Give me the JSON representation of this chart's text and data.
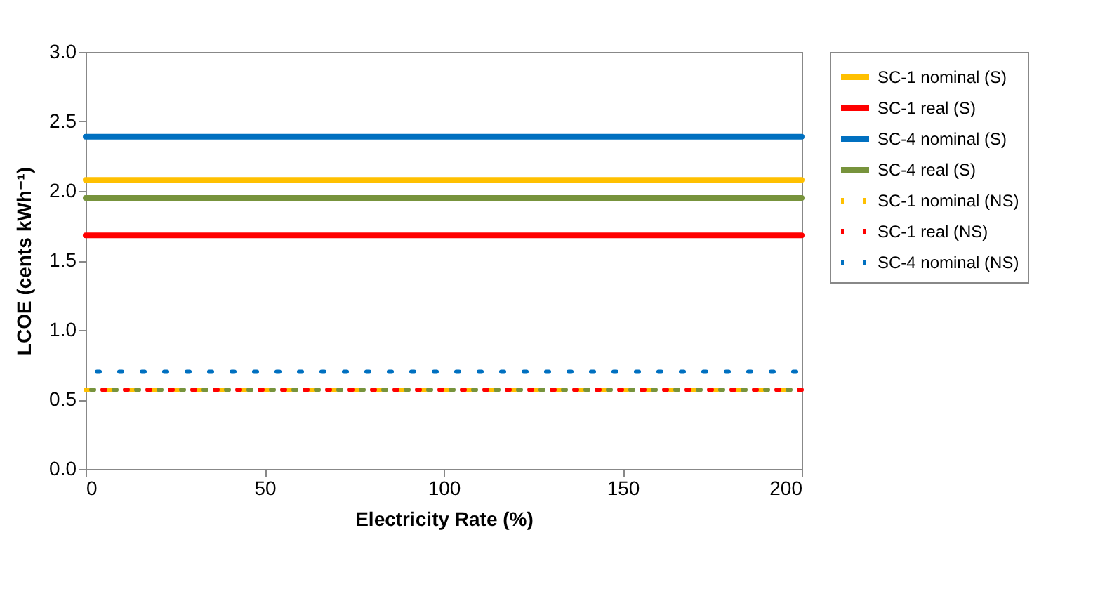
{
  "chart_data": {
    "type": "line",
    "xlabel": "Electricity Rate (%)",
    "ylabel": "LCOE (cents kWh⁻¹)",
    "x": [
      0,
      200
    ],
    "xlim": [
      0,
      200
    ],
    "xticks": [
      0,
      50,
      100,
      150,
      200
    ],
    "ylim": [
      0,
      3
    ],
    "yticks": [
      {
        "value": 0,
        "label": "0.0"
      },
      {
        "value": 0.5,
        "label": "0.5"
      },
      {
        "value": 1,
        "label": "1.0"
      },
      {
        "value": 1.5,
        "label": "1.5"
      },
      {
        "value": 2,
        "label": "2.0"
      },
      {
        "value": 2.5,
        "label": "2.5"
      },
      {
        "value": 3,
        "label": "3.0"
      }
    ],
    "grid": false,
    "legend": "right",
    "marker": "none",
    "series": [
      {
        "name": "SC-1 nominal (S)",
        "color": "#ffc000",
        "values": [
          2.08,
          2.08
        ],
        "line_style": "solid"
      },
      {
        "name": "SC-1 real (S)",
        "color": "#ff0000",
        "values": [
          1.68,
          1.68
        ],
        "line_style": "solid"
      },
      {
        "name": "SC-4 nominal (S)",
        "color": "#0070c0",
        "values": [
          2.39,
          2.39
        ],
        "line_style": "solid"
      },
      {
        "name": "SC-4 real (S)",
        "color": "#77933c",
        "values": [
          1.95,
          1.95
        ],
        "line_style": "solid"
      },
      {
        "name": "SC-1 nominal (NS)",
        "color": "#ffc000",
        "values": [
          0.57,
          0.57
        ],
        "line_style": "dotted"
      },
      {
        "name": "SC-1 real (NS)",
        "color": "#ff0000",
        "values": [
          0.57,
          0.57
        ],
        "line_style": "dotted"
      },
      {
        "name": "SC-4 nominal (NS)",
        "color": "#0070c0",
        "values": [
          0.7,
          0.7
        ],
        "line_style": "dotted"
      },
      {
        "color": "#77933c",
        "values": [
          0.57,
          0.57
        ],
        "line_style": "dotted"
      }
    ]
  }
}
